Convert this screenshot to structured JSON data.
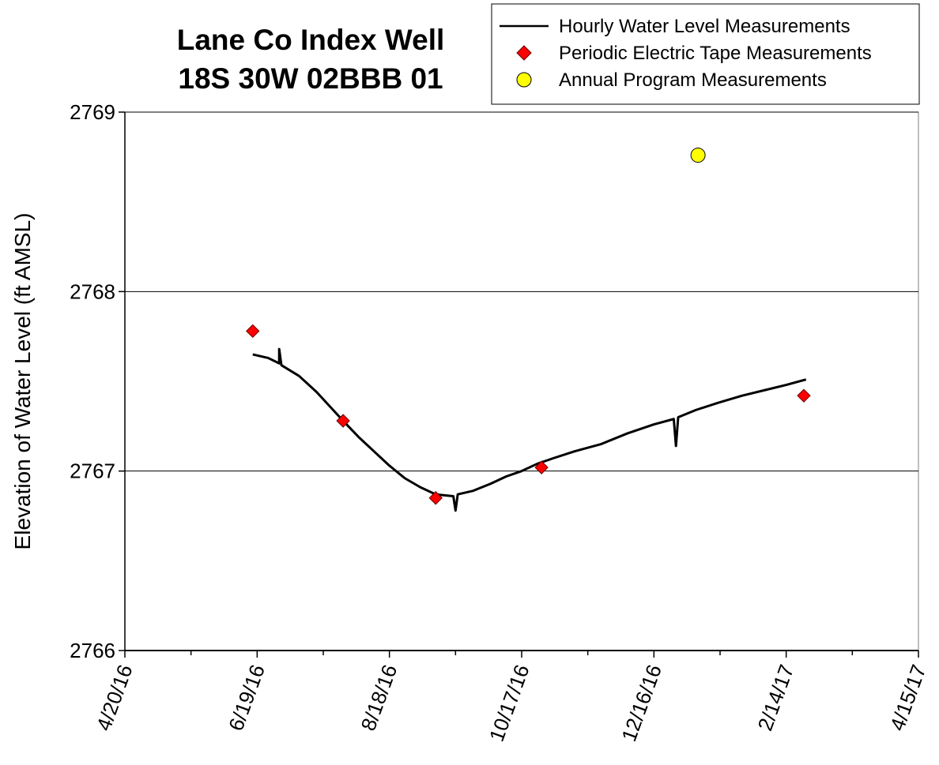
{
  "chart_data": {
    "type": "line",
    "title": [
      "Lane Co Index Well",
      "18S 30W 02BBB 01"
    ],
    "y_label": "Elevation of Water Level (ft AMSL)",
    "xlim": [
      "2016-04-20",
      "2017-04-15"
    ],
    "xticks": [
      {
        "value": "2016-04-20",
        "label": "4/20/16"
      },
      {
        "value": "2016-06-19",
        "label": "6/19/16"
      },
      {
        "value": "2016-08-18",
        "label": "8/18/16"
      },
      {
        "value": "2016-10-17",
        "label": "10/17/16"
      },
      {
        "value": "2016-12-16",
        "label": "12/16/16"
      },
      {
        "value": "2017-02-14",
        "label": "2/14/17"
      },
      {
        "value": "2017-04-15",
        "label": "4/15/17"
      }
    ],
    "xminor_ticks": [
      "2016-05-20",
      "2016-07-19",
      "2016-09-17",
      "2016-11-16",
      "2017-01-15",
      "2017-03-16"
    ],
    "ylim": [
      2766,
      2769
    ],
    "yticks": [
      2766,
      2767,
      2768,
      2769
    ],
    "grid": true,
    "legend": "upper right",
    "series": [
      {
        "name": "Hourly Water Level Measurements",
        "marker": "line",
        "color": "#000000",
        "x": [
          "2016-06-17",
          "2016-06-24",
          "2016-06-29",
          "2016-06-29",
          "2016-06-30",
          "2016-07-08",
          "2016-07-16",
          "2016-07-22",
          "2016-07-28",
          "2016-08-04",
          "2016-08-11",
          "2016-08-18",
          "2016-08-25",
          "2016-09-01",
          "2016-09-08",
          "2016-09-16",
          "2016-09-17",
          "2016-09-18",
          "2016-09-25",
          "2016-10-03",
          "2016-10-10",
          "2016-10-17",
          "2016-10-24",
          "2016-10-31",
          "2016-11-10",
          "2016-11-22",
          "2016-12-04",
          "2016-12-16",
          "2016-12-25",
          "2016-12-26",
          "2016-12-27",
          "2017-01-04",
          "2017-01-14",
          "2017-01-25",
          "2017-02-04",
          "2017-02-14",
          "2017-02-23"
        ],
        "values": [
          2767.65,
          2767.63,
          2767.6,
          2767.68,
          2767.59,
          2767.53,
          2767.44,
          2767.36,
          2767.28,
          2767.19,
          2767.11,
          2767.03,
          2766.96,
          2766.91,
          2766.87,
          2766.86,
          2766.78,
          2766.87,
          2766.89,
          2766.93,
          2766.97,
          2767.0,
          2767.04,
          2767.07,
          2767.11,
          2767.15,
          2767.21,
          2767.26,
          2767.29,
          2767.14,
          2767.3,
          2767.34,
          2767.38,
          2767.42,
          2767.45,
          2767.48,
          2767.51
        ]
      },
      {
        "name": "Periodic Electric Tape Measurements",
        "marker": "diamond",
        "color": "#ff0000",
        "x": [
          "2016-06-17",
          "2016-07-28",
          "2016-09-08",
          "2016-10-26",
          "2017-02-22"
        ],
        "values": [
          2767.78,
          2767.28,
          2766.85,
          2767.02,
          2767.42
        ]
      },
      {
        "name": "Annual Program Measurements",
        "marker": "circle",
        "color": "#ffff00",
        "x": [
          "2017-01-05"
        ],
        "values": [
          2768.76
        ]
      }
    ]
  }
}
